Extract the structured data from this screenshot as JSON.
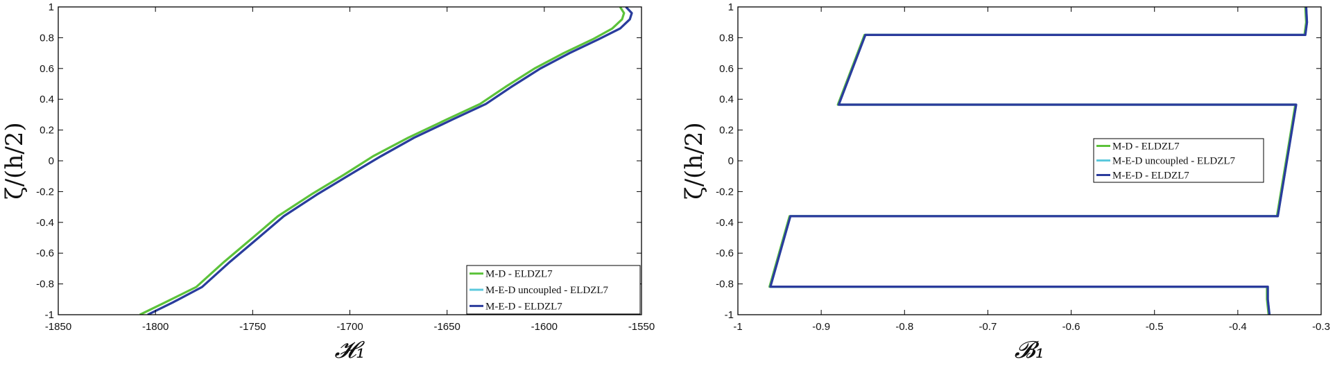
{
  "colors": {
    "md": "#5cc23a",
    "med_uncoupled": "#5bc8dc",
    "med": "#2b3b9c",
    "axis": "#000000"
  },
  "chart_data": [
    {
      "type": "line",
      "xlabel": "𝓗₁",
      "ylabel": "ζ/(h/2)",
      "xlim": [
        -1850,
        -1550
      ],
      "ylim": [
        -1,
        1
      ],
      "xticks": [
        "-1850",
        "-1800",
        "-1750",
        "-1700",
        "-1650",
        "-1600",
        "-1550"
      ],
      "yticks": [
        "-1",
        "-0.8",
        "-0.6",
        "-0.4",
        "-0.2",
        "0",
        "0.2",
        "0.4",
        "0.6",
        "0.8",
        "1"
      ],
      "grid": false,
      "legend_position": "bottom-right",
      "series": [
        {
          "name": "M-D - ELDZL7",
          "x": [
            -1808,
            -1795,
            -1779,
            -1765,
            -1750,
            -1737,
            -1720,
            -1703,
            -1688,
            -1670,
            -1650,
            -1633,
            -1620,
            -1605,
            -1590,
            -1575,
            -1565,
            -1560,
            -1559,
            -1561
          ],
          "y": [
            -1.0,
            -0.92,
            -0.82,
            -0.66,
            -0.5,
            -0.36,
            -0.22,
            -0.09,
            0.03,
            0.15,
            0.27,
            0.37,
            0.48,
            0.6,
            0.7,
            0.79,
            0.86,
            0.92,
            0.96,
            1.0
          ]
        },
        {
          "name": "M-E-D uncoupled - ELDZL7",
          "x": [
            -1804,
            -1791,
            -1776,
            -1762,
            -1747,
            -1734,
            -1717,
            -1700,
            -1684,
            -1667,
            -1647,
            -1630,
            -1617,
            -1602,
            -1587,
            -1572,
            -1561,
            -1556,
            -1555,
            -1558
          ],
          "y": [
            -1.0,
            -0.92,
            -0.82,
            -0.66,
            -0.5,
            -0.36,
            -0.22,
            -0.09,
            0.03,
            0.15,
            0.27,
            0.37,
            0.48,
            0.6,
            0.7,
            0.79,
            0.86,
            0.92,
            0.96,
            1.0
          ]
        },
        {
          "name": "M-E-D - ELDZL7",
          "x": [
            -1804,
            -1791,
            -1776,
            -1762,
            -1747,
            -1734,
            -1717,
            -1700,
            -1684,
            -1667,
            -1647,
            -1630,
            -1617,
            -1602,
            -1587,
            -1572,
            -1561,
            -1556,
            -1555,
            -1558
          ],
          "y": [
            -1.0,
            -0.92,
            -0.82,
            -0.66,
            -0.5,
            -0.36,
            -0.22,
            -0.09,
            0.03,
            0.15,
            0.27,
            0.37,
            0.48,
            0.6,
            0.7,
            0.79,
            0.86,
            0.92,
            0.96,
            1.0
          ]
        }
      ]
    },
    {
      "type": "line",
      "xlabel": "𝓑₁",
      "ylabel": "ζ/(h/2)",
      "xlim": [
        -1,
        -0.3
      ],
      "ylim": [
        -1,
        1
      ],
      "xticks": [
        "-1",
        "-0.9",
        "-0.8",
        "-0.7",
        "-0.6",
        "-0.5",
        "-0.4",
        "-0.3"
      ],
      "yticks": [
        "-1",
        "-0.8",
        "-0.6",
        "-0.4",
        "-0.2",
        "0",
        "0.2",
        "0.4",
        "0.6",
        "0.8",
        "1"
      ],
      "grid": false,
      "legend_position": "center-right",
      "series": [
        {
          "name": "M-D - ELDZL7",
          "x": [
            -0.363,
            -0.365,
            -0.365,
            -0.959,
            -0.962,
            -0.938,
            -0.938,
            -0.353,
            -0.353,
            -0.331,
            -0.331,
            -0.88,
            -0.88,
            -0.848,
            -0.848,
            -0.32,
            -0.318,
            -0.319
          ],
          "y": [
            -1.0,
            -0.9,
            -0.818,
            -0.818,
            -0.818,
            -0.36,
            -0.36,
            -0.36,
            -0.36,
            0.365,
            0.365,
            0.365,
            0.365,
            0.818,
            0.818,
            0.818,
            0.9,
            1.0
          ]
        },
        {
          "name": "M-E-D uncoupled - ELDZL7",
          "x": [
            -0.362,
            -0.364,
            -0.364,
            -0.958,
            -0.961,
            -0.937,
            -0.937,
            -0.352,
            -0.352,
            -0.33,
            -0.33,
            -0.879,
            -0.879,
            -0.847,
            -0.847,
            -0.319,
            -0.317,
            -0.318
          ],
          "y": [
            -1.0,
            -0.9,
            -0.818,
            -0.818,
            -0.818,
            -0.36,
            -0.36,
            -0.36,
            -0.36,
            0.365,
            0.365,
            0.365,
            0.365,
            0.818,
            0.818,
            0.818,
            0.9,
            1.0
          ]
        },
        {
          "name": "M-E-D - ELDZL7",
          "x": [
            -0.362,
            -0.364,
            -0.364,
            -0.958,
            -0.961,
            -0.937,
            -0.937,
            -0.352,
            -0.352,
            -0.33,
            -0.33,
            -0.879,
            -0.879,
            -0.847,
            -0.847,
            -0.319,
            -0.317,
            -0.318
          ],
          "y": [
            -1.0,
            -0.9,
            -0.818,
            -0.818,
            -0.818,
            -0.36,
            -0.36,
            -0.36,
            -0.36,
            0.365,
            0.365,
            0.365,
            0.365,
            0.818,
            0.818,
            0.818,
            0.9,
            1.0
          ]
        }
      ]
    }
  ]
}
